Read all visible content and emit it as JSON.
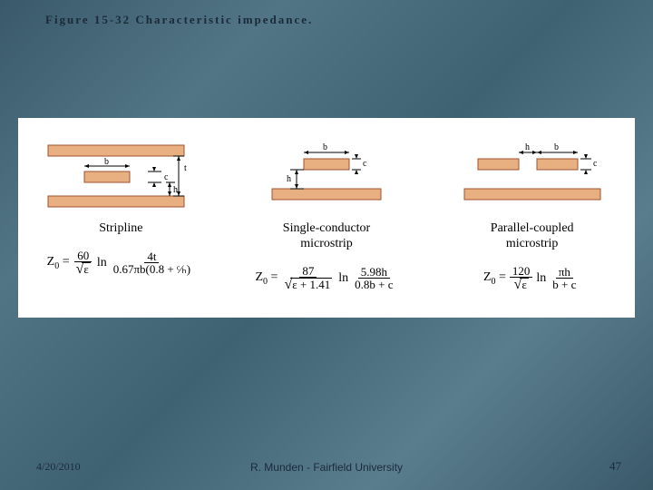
{
  "title": "Figure 15-32   Characteristic impedance.",
  "panel": {
    "background": "#ffffff",
    "strip_fill": "#e8b080",
    "strip_stroke": "#a05030",
    "dim_color": "#000000"
  },
  "columns": [
    {
      "label": "Stripline",
      "formula": {
        "lhs": "Z",
        "sub": "0",
        "coef_num": "60",
        "coef_den_rad": "ε",
        "op": "ln",
        "arg_num": "4t",
        "arg_den": "0.67πb(0.8 + ᶜ⁄ₕ)"
      }
    },
    {
      "label": "Single-conductor\nmicrostrip",
      "formula": {
        "lhs": "Z",
        "sub": "0",
        "coef_num": "87",
        "coef_den_rad": "ε + 1.41",
        "op": "ln",
        "arg_num": "5.98h",
        "arg_den": "0.8b + c"
      }
    },
    {
      "label": "Parallel-coupled\nmicrostrip",
      "formula": {
        "lhs": "Z",
        "sub": "0",
        "coef_num": "120",
        "coef_den_rad": "ε",
        "op": "ln",
        "arg_num": "πh",
        "arg_den": "b + c"
      }
    }
  ],
  "footer": {
    "date": "4/20/2010",
    "author": "R. Munden - Fairfield University",
    "page": "47"
  }
}
